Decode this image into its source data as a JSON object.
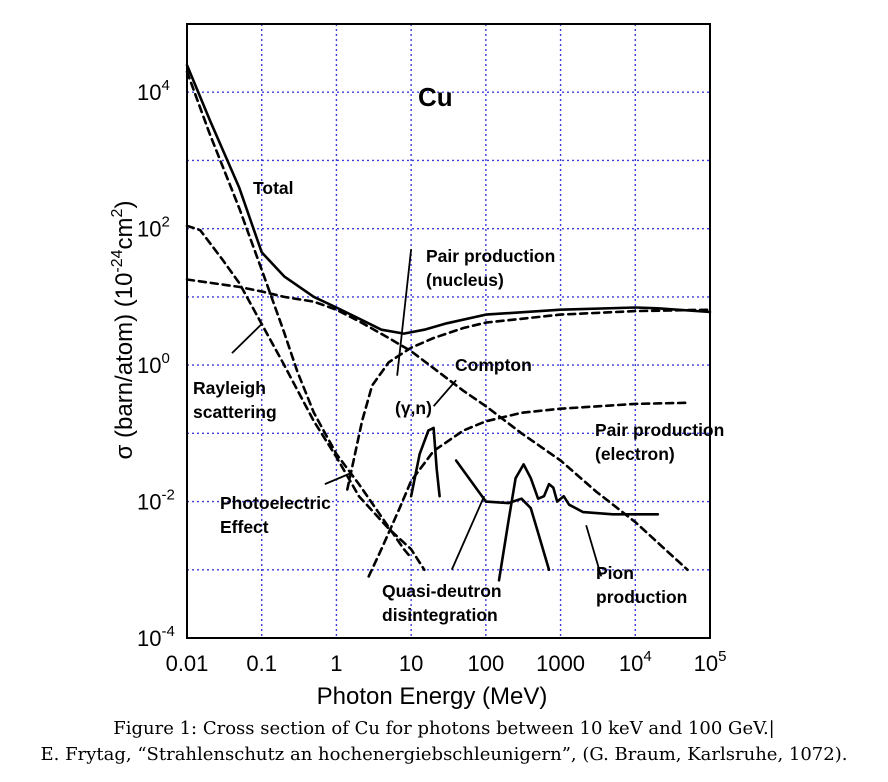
{
  "chart_data": {
    "type": "line",
    "x_scale": "log",
    "y_scale": "log",
    "xlabel": "Photon Energy (MeV)",
    "ylabel_parts": [
      "σ (barn/atom) (10",
      "-24",
      "cm",
      "2",
      ")"
    ],
    "xlim": [
      0.01,
      100000
    ],
    "ylim": [
      0.0001,
      100000
    ],
    "grid": true,
    "x_ticks": [
      {
        "value": 0.01,
        "base": "0.01",
        "exp": ""
      },
      {
        "value": 0.1,
        "base": "0.1",
        "exp": ""
      },
      {
        "value": 1,
        "base": "1",
        "exp": ""
      },
      {
        "value": 10,
        "base": "10",
        "exp": ""
      },
      {
        "value": 100,
        "base": "100",
        "exp": ""
      },
      {
        "value": 1000,
        "base": "1000",
        "exp": ""
      },
      {
        "value": 10000,
        "base": "10",
        "exp": "4"
      },
      {
        "value": 100000,
        "base": "10",
        "exp": "5"
      }
    ],
    "y_ticks": [
      {
        "value": 0.0001,
        "base": "10",
        "exp": "-4"
      },
      {
        "value": 0.01,
        "base": "10",
        "exp": "-2"
      },
      {
        "value": 1,
        "base": "10",
        "exp": "0"
      },
      {
        "value": 100,
        "base": "10",
        "exp": "2"
      },
      {
        "value": 10000,
        "base": "10",
        "exp": "4"
      }
    ],
    "element_label": "Cu",
    "series": [
      {
        "key": "total",
        "style": "solid",
        "points": [
          [
            0.01,
            25000
          ],
          [
            0.02,
            4000
          ],
          [
            0.05,
            400
          ],
          [
            0.1,
            45
          ],
          [
            0.2,
            20
          ],
          [
            0.5,
            10
          ],
          [
            1,
            7
          ],
          [
            2,
            4.8
          ],
          [
            4,
            3.3
          ],
          [
            8,
            2.9
          ],
          [
            15,
            3.3
          ],
          [
            30,
            4.1
          ],
          [
            100,
            5.5
          ],
          [
            1000,
            6.5
          ],
          [
            10000,
            7.0
          ],
          [
            20000,
            6.8
          ],
          [
            100000,
            6.0
          ]
        ]
      },
      {
        "key": "rayleigh",
        "style": "dashed",
        "points": [
          [
            0.01,
            110
          ],
          [
            0.015,
            95
          ],
          [
            0.03,
            35
          ],
          [
            0.05,
            16
          ],
          [
            0.1,
            4
          ],
          [
            0.2,
            1.0
          ],
          [
            0.5,
            0.15
          ],
          [
            1,
            0.045
          ],
          [
            2,
            0.012
          ],
          [
            5,
            0.004
          ],
          [
            10,
            0.002
          ],
          [
            15,
            0.001
          ]
        ]
      },
      {
        "key": "photoelectric",
        "style": "dashed",
        "points": [
          [
            0.01,
            20000
          ],
          [
            0.02,
            2500
          ],
          [
            0.05,
            200
          ],
          [
            0.1,
            25
          ],
          [
            0.2,
            3
          ],
          [
            0.3,
            0.8
          ],
          [
            0.5,
            0.2
          ],
          [
            1,
            0.05
          ],
          [
            2,
            0.018
          ],
          [
            4,
            0.006
          ],
          [
            8,
            0.002
          ],
          [
            10,
            0.0015
          ]
        ]
      },
      {
        "key": "compton",
        "style": "dashed",
        "points": [
          [
            0.01,
            18
          ],
          [
            0.05,
            14
          ],
          [
            0.1,
            12
          ],
          [
            0.2,
            10
          ],
          [
            0.5,
            8.5
          ],
          [
            1,
            6.5
          ],
          [
            2,
            4.4
          ],
          [
            5,
            2.5
          ],
          [
            10,
            1.6
          ],
          [
            20,
            0.9
          ],
          [
            50,
            0.42
          ],
          [
            100,
            0.25
          ],
          [
            300,
            0.1
          ],
          [
            1000,
            0.04
          ],
          [
            3000,
            0.014
          ],
          [
            10000,
            0.005
          ],
          [
            50000,
            0.001
          ]
        ]
      },
      {
        "key": "pair_nucleus",
        "style": "dashed",
        "points": [
          [
            1.4,
            0.015
          ],
          [
            1.7,
            0.04
          ],
          [
            2.2,
            0.15
          ],
          [
            3,
            0.5
          ],
          [
            5,
            1.1
          ],
          [
            10,
            1.8
          ],
          [
            20,
            2.5
          ],
          [
            50,
            3.5
          ],
          [
            100,
            4.2
          ],
          [
            1000,
            5.5
          ],
          [
            10000,
            6.2
          ],
          [
            100000,
            6.5
          ]
        ]
      },
      {
        "key": "pair_electron",
        "style": "dashed",
        "points": [
          [
            2.7,
            0.0008
          ],
          [
            4,
            0.002
          ],
          [
            7,
            0.008
          ],
          [
            10,
            0.02
          ],
          [
            20,
            0.055
          ],
          [
            50,
            0.11
          ],
          [
            100,
            0.15
          ],
          [
            300,
            0.2
          ],
          [
            1000,
            0.23
          ],
          [
            10000,
            0.27
          ],
          [
            50000,
            0.28
          ]
        ]
      },
      {
        "key": "gamma_n",
        "style": "solid",
        "points": [
          [
            10,
            0.012
          ],
          [
            13,
            0.05
          ],
          [
            17,
            0.11
          ],
          [
            20,
            0.12
          ],
          [
            22,
            0.03
          ],
          [
            24,
            0.012
          ]
        ]
      },
      {
        "key": "quasi_deuteron",
        "style": "solid",
        "points": [
          [
            40,
            0.04
          ],
          [
            100,
            0.01
          ],
          [
            200,
            0.0095
          ],
          [
            300,
            0.011
          ],
          [
            400,
            0.008
          ],
          [
            500,
            0.0035
          ],
          [
            700,
            0.001
          ]
        ]
      },
      {
        "key": "pion",
        "style": "solid",
        "points": [
          [
            150,
            0.0007
          ],
          [
            200,
            0.005
          ],
          [
            250,
            0.022
          ],
          [
            320,
            0.035
          ],
          [
            400,
            0.022
          ],
          [
            500,
            0.011
          ],
          [
            600,
            0.012
          ],
          [
            700,
            0.018
          ],
          [
            800,
            0.016
          ],
          [
            900,
            0.01
          ],
          [
            1100,
            0.012
          ],
          [
            1300,
            0.009
          ],
          [
            2000,
            0.007
          ],
          [
            5000,
            0.0065
          ],
          [
            10000,
            0.0065
          ],
          [
            20000,
            0.0065
          ]
        ]
      }
    ],
    "annotations": {
      "total": {
        "lines": [
          "Total"
        ]
      },
      "pair_nucleus": {
        "lines": [
          "Pair production",
          "(nucleus)"
        ]
      },
      "compton": {
        "lines": [
          "Compton"
        ]
      },
      "rayleigh": {
        "lines": [
          "Rayleigh",
          "scattering"
        ]
      },
      "gamma_n": {
        "lines": [
          "(γ,n)"
        ]
      },
      "pair_electron": {
        "lines": [
          "Pair production",
          "(electron)"
        ]
      },
      "photoelectric": {
        "lines": [
          "Photoelectric",
          "Effect"
        ]
      },
      "quasi_deuteron": {
        "lines": [
          "Quasi-deutron",
          "disintegration"
        ]
      },
      "pion": {
        "lines": [
          "Pion",
          "production"
        ]
      }
    },
    "leader_lines": [
      {
        "for": "pair_nucleus",
        "from": [
          6.5,
          0.7
        ],
        "to": [
          10,
          50
        ]
      },
      {
        "for": "compton",
        "from": [
          20,
          0.25
        ],
        "to": [
          40,
          0.6
        ]
      },
      {
        "for": "rayleigh",
        "from": [
          0.04,
          1.5
        ],
        "to": [
          0.1,
          4
        ]
      },
      {
        "for": "photoelectric",
        "from": [
          0.7,
          0.018
        ],
        "to": [
          1.55,
          0.026
        ]
      },
      {
        "for": "quasi_deuteron",
        "from": [
          35,
          0.001
        ],
        "to": [
          95,
          0.012
        ]
      },
      {
        "for": "pion",
        "from": [
          3500,
          0.0008
        ],
        "to": [
          2200,
          0.0045
        ]
      }
    ],
    "colors": {
      "grid": "#3c3cdc",
      "curves": "#000000",
      "frame": "#000000"
    }
  },
  "caption": {
    "line1": "Figure 1: Cross section of Cu for photons between 10 keV and 100 GeV.|",
    "line2": "E. Frytag, “Strahlenschutz an hochenergiebschleunigern”, (G. Braum, Karlsruhe, 1072)."
  }
}
